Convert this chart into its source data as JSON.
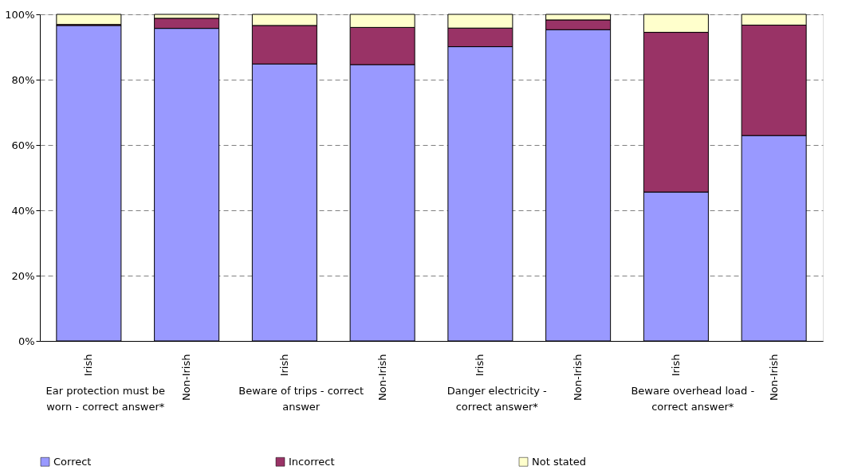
{
  "chart_data": {
    "type": "bar",
    "stacked": true,
    "categories": [
      "Irish",
      "Non-Irish",
      "Irish",
      "Non-Irish",
      "Irish",
      "Non-Irish",
      "Irish",
      "Non-Irish"
    ],
    "series": [
      {
        "name": "Correct",
        "color": "#9999ff",
        "values": [
          96.6,
          95.7,
          84.8,
          84.6,
          90.1,
          95.3,
          45.6,
          62.9
        ]
      },
      {
        "name": "Incorrect",
        "color": "#993366",
        "values": [
          0.3,
          3.1,
          11.8,
          11.4,
          5.7,
          3.0,
          48.9,
          33.8
        ]
      },
      {
        "name": "Not stated",
        "color": "#ffffcc",
        "values": [
          3.1,
          1.2,
          3.4,
          4.0,
          4.2,
          1.7,
          5.5,
          3.3
        ]
      }
    ],
    "annotations": [
      "Ear protection must be\nworn - correct answer*",
      "Beware of trips - correct\nanswer",
      "Danger electricity -\ncorrect answer*",
      "Beware overhead load -\ncorrect answer*"
    ],
    "ylim": [
      0,
      100
    ],
    "yticks": [
      {
        "value": 0,
        "label": "0%"
      },
      {
        "value": 20,
        "label": "20%"
      },
      {
        "value": 40,
        "label": "40%"
      },
      {
        "value": 60,
        "label": "60%"
      },
      {
        "value": 80,
        "label": "80%"
      },
      {
        "value": 100,
        "label": "100%"
      }
    ],
    "grid": "y",
    "legend": "bottom"
  }
}
